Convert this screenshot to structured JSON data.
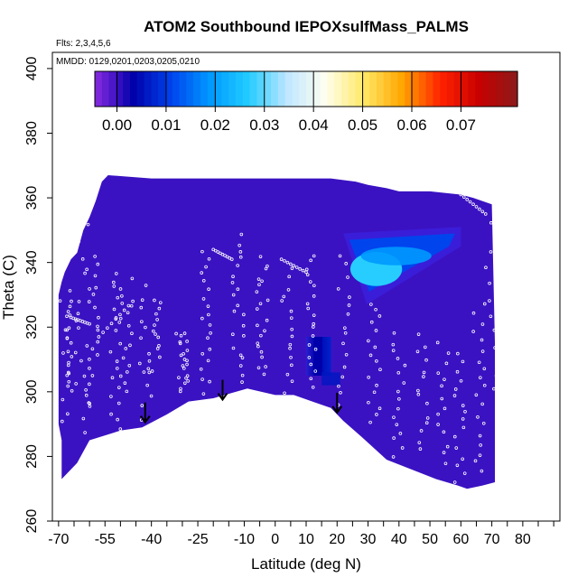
{
  "chart_data": {
    "type": "heatmap",
    "title": "ATOM2 Southbound IEPOXsulfMass_PALMS",
    "flights_label": "Flts: 2,3,4,5,6",
    "dates_label": "MMDD: 0129,0201,0203,0205,0210",
    "xlabel": "Latitude (deg N)",
    "ylabel": "Theta (C)",
    "xlim": [
      -72,
      92
    ],
    "ylim": [
      260,
      405
    ],
    "x_ticks": [
      -70,
      -55,
      -40,
      -25,
      -10,
      0,
      10,
      20,
      30,
      40,
      50,
      60,
      70,
      80
    ],
    "x_tick_labels": [
      "-70",
      "-55",
      "-40",
      "-25",
      "-10",
      "0",
      "10",
      "20",
      "30",
      "40",
      "50",
      "60",
      "70",
      "80"
    ],
    "x_minor_ticks": [
      -65,
      -60,
      -50,
      -45,
      -35,
      -30,
      -20,
      -15,
      -5,
      5,
      15,
      25,
      35,
      45,
      55,
      65,
      75,
      85,
      90
    ],
    "y_ticks": [
      260,
      280,
      300,
      320,
      340,
      360,
      380,
      400
    ],
    "y_tick_labels": [
      "260",
      "280",
      "300",
      "320",
      "340",
      "360",
      "380",
      "400"
    ],
    "colorbar": {
      "ticks": [
        0.0,
        0.01,
        0.02,
        0.03,
        0.04,
        0.05,
        0.06,
        0.07
      ],
      "tick_labels": [
        "0.00",
        "0.01",
        "0.02",
        "0.03",
        "0.04",
        "0.05",
        "0.06",
        "0.07"
      ],
      "min": -0.0045,
      "max": 0.0815,
      "stops": [
        "#8a2be2",
        "#0000aa",
        "#0044ee",
        "#0099ff",
        "#22ccff",
        "#bfe6ff",
        "#fffff0",
        "#ffe866",
        "#ffa500",
        "#ff2200",
        "#c80000",
        "#8b1a1a"
      ]
    },
    "background_value": 0.0,
    "field_outline": [
      [
        -69,
        273
      ],
      [
        -64,
        278
      ],
      [
        -60,
        285
      ],
      [
        -50,
        288
      ],
      [
        -43,
        289
      ],
      [
        -35,
        293
      ],
      [
        -28,
        297
      ],
      [
        -20,
        298
      ],
      [
        -9,
        301
      ],
      [
        0,
        299
      ],
      [
        6,
        299
      ],
      [
        12,
        297
      ],
      [
        18,
        295
      ],
      [
        22,
        291
      ],
      [
        28,
        286
      ],
      [
        36,
        279
      ],
      [
        44,
        276
      ],
      [
        52,
        273
      ],
      [
        59,
        271
      ],
      [
        62,
        270
      ],
      [
        67,
        271
      ],
      [
        71,
        272
      ],
      [
        71,
        315
      ],
      [
        70,
        358
      ],
      [
        64,
        360
      ],
      [
        60,
        361
      ],
      [
        50,
        362
      ],
      [
        40,
        362
      ],
      [
        36,
        363
      ],
      [
        30,
        364
      ],
      [
        26,
        365
      ],
      [
        18,
        366
      ],
      [
        8,
        366
      ],
      [
        -10,
        366
      ],
      [
        -25,
        366
      ],
      [
        -40,
        366
      ],
      [
        -54,
        367
      ],
      [
        -56,
        365
      ],
      [
        -58,
        359
      ],
      [
        -60,
        354
      ],
      [
        -62,
        350
      ],
      [
        -64,
        343
      ],
      [
        -66,
        341
      ],
      [
        -67,
        339
      ],
      [
        -68,
        337
      ],
      [
        -69,
        334
      ],
      [
        -70,
        330
      ],
      [
        -70,
        290
      ],
      [
        -69,
        285
      ]
    ],
    "enhancements": [
      {
        "label": "upper-right plume",
        "lat": [
          22,
          60
        ],
        "theta": [
          327,
          351
        ],
        "peak_value": 0.027
      },
      {
        "label": "mid-level block",
        "lat": [
          10,
          18
        ],
        "theta": [
          305,
          317
        ],
        "peak_value": 0.01
      },
      {
        "label": "small patch",
        "lat": [
          15,
          21
        ],
        "theta": [
          302,
          306
        ],
        "peak_value": 0.006
      }
    ],
    "arrows": [
      {
        "lat": -42,
        "theta": 290
      },
      {
        "lat": -17,
        "theta": 297
      },
      {
        "lat": 20,
        "theta": 293
      }
    ]
  }
}
